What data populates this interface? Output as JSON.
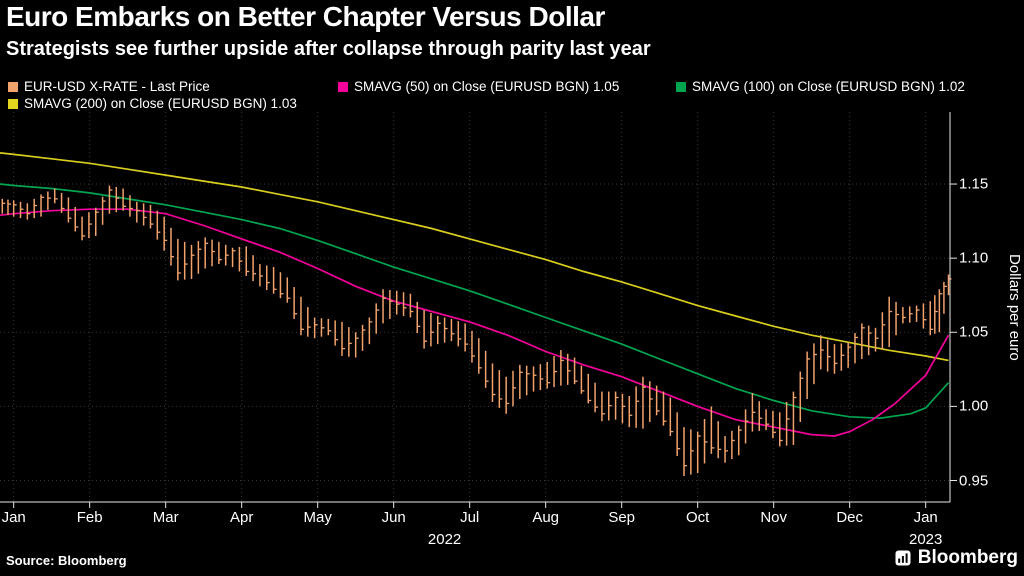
{
  "header": {
    "title": "Euro Embarks on Better Chapter Versus Dollar",
    "subtitle": "Strategists see further upside after collapse through parity last year"
  },
  "legend": [
    {
      "label": "EUR-USD X-RATE - Last Price",
      "color": "#f2a26c"
    },
    {
      "label": "SMAVG (50)  on Close (EURUSD BGN) 1.05",
      "color": "#f5009b"
    },
    {
      "label": "SMAVG (100)  on Close (EURUSD BGN) 1.02",
      "color": "#00a550"
    },
    {
      "label": "SMAVG (200)  on Close (EURUSD BGN) 1.03",
      "color": "#e3d51f"
    }
  ],
  "axes": {
    "y_label": "Dollars per euro",
    "y_ticks": [
      "1.15",
      "1.10",
      "1.05",
      "1.00",
      "0.95"
    ],
    "x_ticks": [
      "Jan",
      "Feb",
      "Mar",
      "Apr",
      "May",
      "Jun",
      "Jul",
      "Aug",
      "Sep",
      "Oct",
      "Nov",
      "Dec",
      "Jan"
    ],
    "year_labels": [
      "2022",
      "2023"
    ]
  },
  "footer": {
    "source": "Source: Bloomberg",
    "brand": "Bloomberg"
  },
  "chart_data": {
    "type": "line",
    "subtype": "hlc-price-bars-with-sma-lines",
    "title": "Euro Embarks on Better Chapter Versus Dollar",
    "ylabel": "Dollars per euro",
    "x_unit": "months since Jan 1 2022",
    "ylim": [
      0.9355,
      1.1986
    ],
    "xlim": [
      -0.18,
      12.32
    ],
    "y_gridlines": [
      1.15,
      1.1,
      1.05,
      1.0,
      0.95
    ],
    "x_gridlines": [
      0,
      1,
      2,
      3,
      4,
      5,
      6,
      7,
      8,
      9,
      10,
      11,
      12
    ],
    "price_color": "#f2a26c",
    "price_bars": [
      [
        -0.15,
        1.14,
        1.13,
        1.137
      ],
      [
        0.0,
        1.139,
        1.128,
        1.136
      ],
      [
        0.18,
        1.137,
        1.126,
        1.13
      ],
      [
        0.36,
        1.143,
        1.128,
        1.141
      ],
      [
        0.54,
        1.147,
        1.137,
        1.14
      ],
      [
        0.72,
        1.141,
        1.124,
        1.127
      ],
      [
        0.9,
        1.128,
        1.112,
        1.115
      ],
      [
        1.08,
        1.134,
        1.115,
        1.131
      ],
      [
        1.26,
        1.149,
        1.13,
        1.146
      ],
      [
        1.44,
        1.147,
        1.132,
        1.135
      ],
      [
        1.62,
        1.138,
        1.124,
        1.132
      ],
      [
        1.8,
        1.136,
        1.12,
        1.123
      ],
      [
        1.98,
        1.128,
        1.105,
        1.112
      ],
      [
        2.16,
        1.113,
        1.085,
        1.09
      ],
      [
        2.34,
        1.109,
        1.086,
        1.102
      ],
      [
        2.52,
        1.114,
        1.093,
        1.11
      ],
      [
        2.7,
        1.111,
        1.096,
        1.099
      ],
      [
        2.88,
        1.107,
        1.094,
        1.105
      ],
      [
        3.06,
        1.108,
        1.088,
        1.091
      ],
      [
        3.24,
        1.096,
        1.081,
        1.088
      ],
      [
        3.42,
        1.094,
        1.076,
        1.079
      ],
      [
        3.6,
        1.087,
        1.07,
        1.073
      ],
      [
        3.78,
        1.074,
        1.048,
        1.052
      ],
      [
        3.96,
        1.06,
        1.046,
        1.055
      ],
      [
        4.14,
        1.059,
        1.048,
        1.051
      ],
      [
        4.32,
        1.057,
        1.034,
        1.039
      ],
      [
        4.5,
        1.05,
        1.033,
        1.046
      ],
      [
        4.68,
        1.06,
        1.042,
        1.057
      ],
      [
        4.86,
        1.079,
        1.056,
        1.073
      ],
      [
        5.04,
        1.078,
        1.062,
        1.069
      ],
      [
        5.22,
        1.076,
        1.06,
        1.064
      ],
      [
        5.4,
        1.065,
        1.039,
        1.044
      ],
      [
        5.58,
        1.061,
        1.042,
        1.056
      ],
      [
        5.76,
        1.059,
        1.044,
        1.049
      ],
      [
        5.94,
        1.056,
        1.037,
        1.042
      ],
      [
        6.12,
        1.046,
        1.022,
        1.026
      ],
      [
        6.3,
        1.029,
        1.003,
        1.008
      ],
      [
        6.48,
        1.02,
        0.995,
        1.002
      ],
      [
        6.66,
        1.028,
        1.005,
        1.023
      ],
      [
        6.84,
        1.027,
        1.01,
        1.021
      ],
      [
        7.02,
        1.03,
        1.012,
        1.016
      ],
      [
        7.2,
        1.038,
        1.014,
        1.031
      ],
      [
        7.38,
        1.033,
        1.015,
        1.017
      ],
      [
        7.56,
        1.022,
        1.002,
        1.004
      ],
      [
        7.74,
        1.01,
        0.99,
        0.995
      ],
      [
        7.92,
        1.01,
        0.991,
        1.006
      ],
      [
        8.1,
        1.007,
        0.986,
        0.994
      ],
      [
        8.28,
        1.02,
        0.985,
        1.013
      ],
      [
        8.46,
        1.014,
        0.994,
        0.997
      ],
      [
        8.64,
        1.006,
        0.98,
        0.983
      ],
      [
        8.82,
        0.986,
        0.953,
        0.96
      ],
      [
        9.0,
        0.983,
        0.955,
        0.98
      ],
      [
        9.18,
        1.0,
        0.968,
        0.972
      ],
      [
        9.36,
        0.98,
        0.962,
        0.97
      ],
      [
        9.54,
        0.987,
        0.967,
        0.984
      ],
      [
        9.72,
        1.009,
        0.983,
        0.996
      ],
      [
        9.9,
        0.998,
        0.984,
        0.988
      ],
      [
        10.08,
        0.996,
        0.973,
        0.977
      ],
      [
        10.26,
        1.01,
        0.974,
        1.006
      ],
      [
        10.44,
        1.037,
        1.005,
        1.032
      ],
      [
        10.62,
        1.048,
        1.025,
        1.038
      ],
      [
        10.8,
        1.042,
        1.022,
        1.029
      ],
      [
        10.98,
        1.043,
        1.026,
        1.04
      ],
      [
        11.16,
        1.056,
        1.032,
        1.053
      ],
      [
        11.34,
        1.053,
        1.037,
        1.046
      ],
      [
        11.52,
        1.074,
        1.04,
        1.064
      ],
      [
        11.7,
        1.067,
        1.056,
        1.06
      ],
      [
        11.88,
        1.068,
        1.057,
        1.065
      ],
      [
        12.06,
        1.071,
        1.048,
        1.052
      ],
      [
        12.18,
        1.079,
        1.05,
        1.076
      ],
      [
        12.3,
        1.089,
        1.075,
        1.086
      ]
    ],
    "series": [
      {
        "name": "SMAVG (200) on Close (EURUSD BGN)",
        "last_value": 1.03,
        "color": "#d9ce1e",
        "points": [
          [
            -0.18,
            1.171
          ],
          [
            0,
            1.17
          ],
          [
            0.5,
            1.167
          ],
          [
            1,
            1.164
          ],
          [
            1.5,
            1.16
          ],
          [
            2,
            1.156
          ],
          [
            2.5,
            1.152
          ],
          [
            3,
            1.148
          ],
          [
            3.5,
            1.143
          ],
          [
            4,
            1.138
          ],
          [
            4.5,
            1.132
          ],
          [
            5,
            1.126
          ],
          [
            5.5,
            1.12
          ],
          [
            6,
            1.113
          ],
          [
            6.5,
            1.106
          ],
          [
            7,
            1.099
          ],
          [
            7.5,
            1.091
          ],
          [
            8,
            1.084
          ],
          [
            8.5,
            1.076
          ],
          [
            9,
            1.068
          ],
          [
            9.5,
            1.061
          ],
          [
            10,
            1.054
          ],
          [
            10.5,
            1.048
          ],
          [
            11,
            1.043
          ],
          [
            11.5,
            1.038
          ],
          [
            12,
            1.034
          ],
          [
            12.3,
            1.031
          ]
        ]
      },
      {
        "name": "SMAVG (100) on Close (EURUSD BGN)",
        "last_value": 1.02,
        "color": "#00a550",
        "points": [
          [
            -0.18,
            1.15
          ],
          [
            0,
            1.149
          ],
          [
            0.5,
            1.147
          ],
          [
            1,
            1.144
          ],
          [
            1.5,
            1.14
          ],
          [
            2,
            1.136
          ],
          [
            2.5,
            1.131
          ],
          [
            3,
            1.126
          ],
          [
            3.5,
            1.12
          ],
          [
            4,
            1.112
          ],
          [
            4.5,
            1.103
          ],
          [
            5,
            1.094
          ],
          [
            5.5,
            1.086
          ],
          [
            6,
            1.078
          ],
          [
            6.5,
            1.069
          ],
          [
            7,
            1.06
          ],
          [
            7.5,
            1.051
          ],
          [
            8,
            1.042
          ],
          [
            8.5,
            1.032
          ],
          [
            9,
            1.022
          ],
          [
            9.5,
            1.012
          ],
          [
            10,
            1.004
          ],
          [
            10.5,
            0.997
          ],
          [
            11,
            0.993
          ],
          [
            11.4,
            0.992
          ],
          [
            11.8,
            0.995
          ],
          [
            12,
            0.999
          ],
          [
            12.3,
            1.016
          ]
        ]
      },
      {
        "name": "SMAVG (50) on Close (EURUSD BGN)",
        "last_value": 1.05,
        "color": "#f5009b",
        "points": [
          [
            -0.18,
            1.129
          ],
          [
            0,
            1.13
          ],
          [
            0.5,
            1.132
          ],
          [
            1,
            1.133
          ],
          [
            1.5,
            1.133
          ],
          [
            2,
            1.13
          ],
          [
            2.5,
            1.122
          ],
          [
            3,
            1.113
          ],
          [
            3.5,
            1.104
          ],
          [
            4,
            1.093
          ],
          [
            4.5,
            1.081
          ],
          [
            5,
            1.071
          ],
          [
            5.5,
            1.064
          ],
          [
            6,
            1.057
          ],
          [
            6.5,
            1.048
          ],
          [
            7,
            1.037
          ],
          [
            7.5,
            1.028
          ],
          [
            8,
            1.02
          ],
          [
            8.5,
            1.01
          ],
          [
            9,
            1.0
          ],
          [
            9.5,
            0.991
          ],
          [
            10,
            0.986
          ],
          [
            10.5,
            0.981
          ],
          [
            10.8,
            0.98
          ],
          [
            11,
            0.983
          ],
          [
            11.3,
            0.991
          ],
          [
            11.6,
            1.002
          ],
          [
            12,
            1.021
          ],
          [
            12.3,
            1.048
          ]
        ]
      }
    ]
  }
}
